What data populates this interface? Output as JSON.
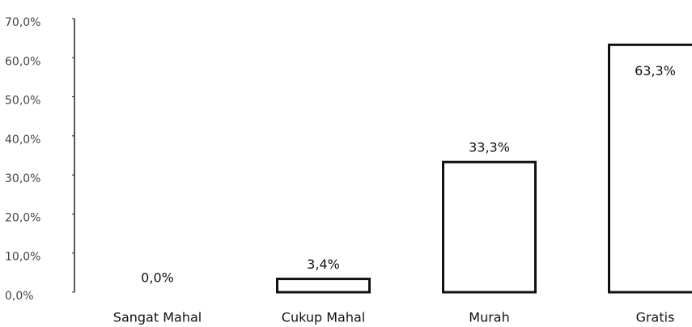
{
  "chart_data": {
    "type": "bar",
    "categories": [
      "Sangat Mahal",
      "Cukup Mahal",
      "Murah",
      "Gratis"
    ],
    "values": [
      0,
      3.4,
      33.3,
      63.3
    ],
    "value_labels": [
      "0,0%",
      "3,4%",
      "33,3%",
      "63,3%"
    ],
    "color": "#ffffff",
    "ylim": [
      0,
      70
    ],
    "yticks": [
      {
        "value": 0,
        "label": "0,0%"
      },
      {
        "value": 10,
        "label": "10,0%"
      },
      {
        "value": 20,
        "label": "20,0%"
      },
      {
        "value": 30,
        "label": "30,0%"
      },
      {
        "value": 40,
        "label": "40,0%"
      },
      {
        "value": 50,
        "label": "50,0%"
      },
      {
        "value": 60,
        "label": "60,0%"
      },
      {
        "value": 70,
        "label": "70,0%"
      }
    ],
    "grid": false
  }
}
